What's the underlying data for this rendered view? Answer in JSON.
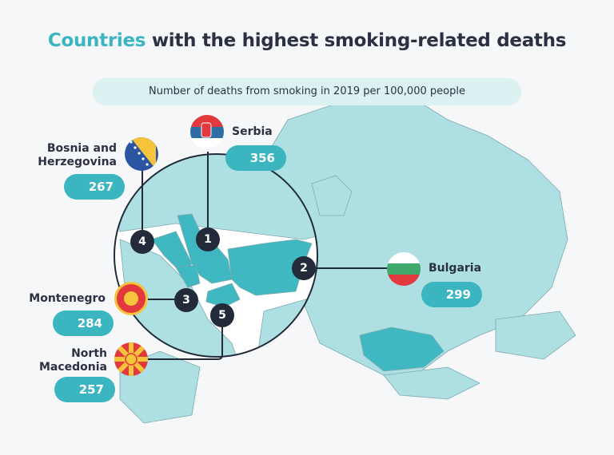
{
  "title": {
    "highlight": "Countries",
    "rest": " with the highest smoking-related deaths"
  },
  "subtitle": "Number of deaths from smoking in 2019 per 100,000 people",
  "colors": {
    "accent": "#3bb5bf",
    "map": "#aee0e3",
    "dark": "#232b3b",
    "background": "#f6f7f9"
  },
  "countries": [
    {
      "rank": "1",
      "name": "Serbia",
      "value": "356",
      "flag": "serbia-flag"
    },
    {
      "rank": "2",
      "name": "Bulgaria",
      "value": "299",
      "flag": "bulgaria-flag"
    },
    {
      "rank": "3",
      "name": "Montenegro",
      "value": "284",
      "flag": "montenegro-flag"
    },
    {
      "rank": "4",
      "name": "Bosnia and Herzegovina",
      "value": "267",
      "flag": "bosnia-flag"
    },
    {
      "rank": "5",
      "name": "North Macedonia",
      "value": "257",
      "flag": "north-macedonia-flag"
    }
  ]
}
